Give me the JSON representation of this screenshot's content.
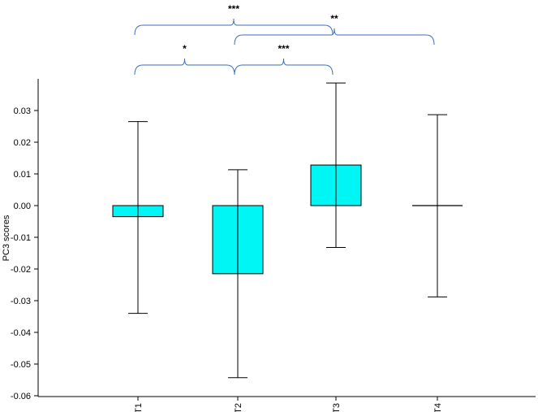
{
  "chart_data": {
    "type": "bar",
    "ylabel": "PC3 scores",
    "xlabel": "",
    "ylim": [
      -0.06,
      0.04
    ],
    "yticks": [
      0.03,
      0.02,
      0.01,
      0.0,
      -0.01,
      -0.02,
      -0.03,
      -0.04,
      -0.05,
      -0.06
    ],
    "ytick_labels": [
      "0.03",
      "0.02",
      "0.01",
      "0.00",
      "-0.01",
      "-0.02",
      "-0.03",
      "-0.04",
      "-0.05",
      "-0.06"
    ],
    "categories": [
      "T1",
      "T2",
      "T3",
      "T4"
    ],
    "values": [
      -0.0035,
      -0.0215,
      0.0128,
      0.0
    ],
    "error_upper": [
      0.0265,
      0.0113,
      0.0387,
      0.0287
    ],
    "error_lower": [
      -0.034,
      -0.0543,
      -0.0132,
      -0.0288
    ],
    "bar_color": "#00f5f5",
    "bracket_color": "#3a6fbf",
    "grid": false,
    "significance": [
      {
        "from": "T1",
        "to": "T3",
        "label": "***",
        "level": 2
      },
      {
        "from": "T2",
        "to": "T4",
        "label": "**",
        "level": 1
      },
      {
        "from": "T1",
        "to": "T2",
        "label": "*",
        "level": 0
      },
      {
        "from": "T2",
        "to": "T3",
        "label": "***",
        "level": 0
      }
    ]
  }
}
